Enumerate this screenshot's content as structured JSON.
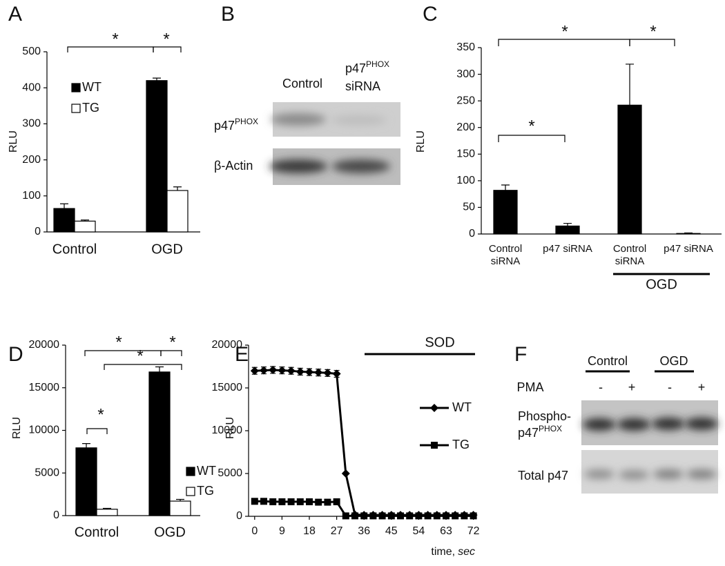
{
  "panels": [
    "A",
    "B",
    "C",
    "D",
    "E",
    "F"
  ],
  "chart_data": [
    {
      "type": "bar",
      "y_label": "RLU",
      "categories": [
        "Control",
        "OGD"
      ],
      "series": [
        {
          "name": "WT",
          "color": "#000000",
          "values": [
            65,
            420
          ],
          "errors": [
            13,
            7
          ]
        },
        {
          "name": "TG",
          "color": "#ffffff",
          "values": [
            30,
            115
          ],
          "errors": [
            3,
            10
          ]
        }
      ],
      "ylim": [
        0,
        500
      ],
      "yticks": [
        0,
        100,
        200,
        300,
        400,
        500
      ],
      "annotations": [
        "*",
        "*"
      ],
      "legend": "upper left"
    },
    {
      "type": "bar",
      "y_label": "RLU",
      "categories": [
        "Control siRNA",
        "p47 siRNA",
        "Control siRNA",
        "p47 siRNA"
      ],
      "series": [
        {
          "color": "#000000",
          "values": [
            82,
            15,
            242,
            1
          ],
          "errors": [
            10,
            5,
            77,
            1
          ]
        }
      ],
      "ylim": [
        0,
        350
      ],
      "yticks": [
        0,
        50,
        100,
        150,
        200,
        250,
        300,
        350
      ],
      "group_label": "OGD",
      "annotations": [
        "*",
        "*",
        "*"
      ]
    },
    {
      "type": "bar",
      "y_label": "RLU",
      "categories": [
        "Control",
        "OGD"
      ],
      "series": [
        {
          "name": "WT",
          "color": "#000000",
          "values": [
            7950,
            16850
          ],
          "errors": [
            500,
            600
          ]
        },
        {
          "name": "TG",
          "color": "#ffffff",
          "values": [
            750,
            1700
          ],
          "errors": [
            100,
            200
          ]
        }
      ],
      "ylim": [
        0,
        20000
      ],
      "yticks": [
        0,
        5000,
        10000,
        15000,
        20000
      ],
      "annotations": [
        "*",
        "*",
        "*",
        "*"
      ],
      "legend": "lower right"
    },
    {
      "type": "line",
      "y_label": "RLU",
      "x_label": "time,",
      "x_label_unit": "sec",
      "x": [
        0,
        3,
        6,
        9,
        12,
        15,
        18,
        21,
        24,
        27,
        30,
        33,
        36,
        39,
        42,
        45,
        48,
        51,
        54,
        57,
        60,
        63,
        66,
        69,
        72
      ],
      "series": [
        {
          "name": "WT",
          "color": "#000000",
          "marker": "diamond",
          "values": [
            17000,
            17050,
            17100,
            17050,
            17000,
            16900,
            16850,
            16800,
            16750,
            16650,
            5000,
            200,
            150,
            150,
            150,
            150,
            150,
            150,
            150,
            150,
            150,
            150,
            150,
            150,
            150
          ],
          "errors": [
            400,
            400,
            400,
            400,
            400,
            400,
            400,
            400,
            400,
            400,
            null,
            null,
            null,
            null,
            null,
            null,
            null,
            null,
            null,
            null,
            null,
            null,
            null,
            null,
            null
          ]
        },
        {
          "name": "TG",
          "color": "#000000",
          "marker": "square",
          "values": [
            1750,
            1750,
            1700,
            1700,
            1700,
            1700,
            1700,
            1650,
            1650,
            1700,
            50,
            50,
            50,
            50,
            50,
            50,
            50,
            50,
            50,
            50,
            50,
            50,
            50,
            50,
            50
          ]
        }
      ],
      "xlim": [
        -2,
        73
      ],
      "xticks": [
        0,
        9,
        18,
        27,
        36,
        45,
        54,
        63,
        72
      ],
      "ylim": [
        0,
        20000
      ],
      "yticks": [
        0,
        5000,
        10000,
        15000,
        20000
      ],
      "annotations": [
        "SOD"
      ],
      "legend": "center right"
    }
  ],
  "blots": [
    {
      "columns": [
        {
          "text": "Control"
        },
        {
          "text": "p47",
          "sup": "PHOX",
          "text2": "siRNA"
        }
      ],
      "rows": [
        {
          "text": "p47",
          "sup": "PHOX"
        },
        {
          "text": "β-Actin"
        }
      ]
    },
    {
      "groups": [
        "Control",
        "OGD"
      ],
      "treatment": "PMA",
      "treatment_levels": [
        "-",
        "+",
        "-",
        "+"
      ],
      "rows": [
        {
          "text": "Phospho-",
          "text2": "p47",
          "sup": "PHOX"
        },
        {
          "text": "Total p47"
        }
      ]
    }
  ]
}
